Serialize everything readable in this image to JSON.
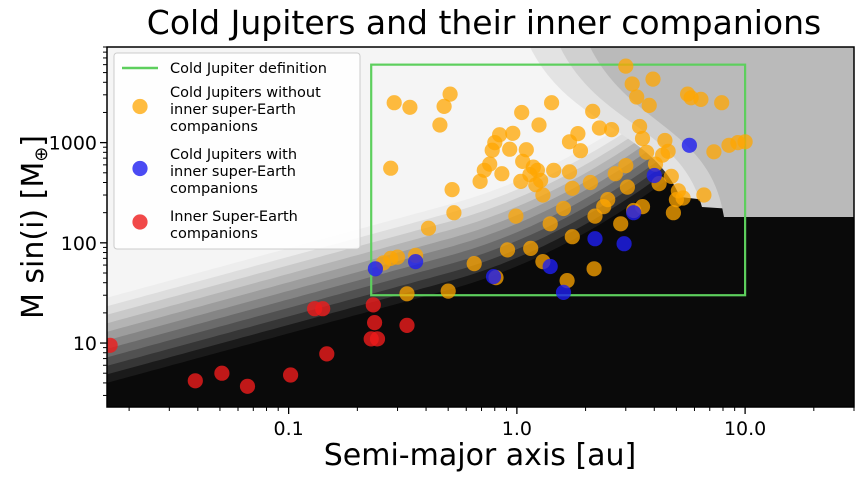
{
  "chart_data": {
    "type": "scatter",
    "title": "Cold Jupiters and their inner companions",
    "xlabel": "Semi-major axis [au]",
    "ylabel_main": "M sin(i) [M",
    "ylabel_sub": "⊕",
    "ylabel_close": "]",
    "xscale": "log",
    "yscale": "log",
    "xlim": [
      0.016,
      30
    ],
    "ylim": [
      2.3,
      9000
    ],
    "x_ticks": [
      {
        "value": 0.1,
        "label": "0.1"
      },
      {
        "value": 1.0,
        "label": "1.0"
      },
      {
        "value": 10.0,
        "label": "10.0"
      }
    ],
    "y_ticks": [
      {
        "value": 10,
        "label": "10"
      },
      {
        "value": 100,
        "label": "100"
      },
      {
        "value": 1000,
        "label": "1000"
      }
    ],
    "legend_placement": "top-left",
    "background": "grayscale filled contours (light at top-left, black at bottom-right)",
    "cold_jupiter_box": {
      "name": "Cold Jupiter definition",
      "color": "#5dcf5d",
      "x": [
        0.23,
        10.0
      ],
      "y": [
        30,
        6000
      ]
    },
    "series": [
      {
        "name": "Cold Jupiters without inner super-Earth companions",
        "legend_lines": [
          "Cold Jupiters without",
          "inner super-Earth",
          "companions"
        ],
        "color": "#ffa500",
        "points": [
          [
            0.28,
            70
          ],
          [
            0.26,
            63
          ],
          [
            0.3,
            72
          ],
          [
            0.33,
            31
          ],
          [
            0.36,
            75
          ],
          [
            0.29,
            2500
          ],
          [
            0.34,
            2250
          ],
          [
            0.28,
            555
          ],
          [
            0.41,
            140
          ],
          [
            0.48,
            2300
          ],
          [
            0.51,
            3050
          ],
          [
            0.46,
            1500
          ],
          [
            0.52,
            340
          ],
          [
            0.53,
            200
          ],
          [
            0.5,
            33
          ],
          [
            0.65,
            62
          ],
          [
            0.69,
            410
          ],
          [
            0.72,
            530
          ],
          [
            0.76,
            610
          ],
          [
            0.78,
            840
          ],
          [
            0.8,
            1000
          ],
          [
            0.84,
            1200
          ],
          [
            0.81,
            45
          ],
          [
            0.86,
            490
          ],
          [
            0.91,
            85
          ],
          [
            0.93,
            860
          ],
          [
            0.96,
            1240
          ],
          [
            0.99,
            185
          ],
          [
            1.04,
            410
          ],
          [
            1.06,
            650
          ],
          [
            1.1,
            850
          ],
          [
            1.14,
            480
          ],
          [
            1.18,
            570
          ],
          [
            1.21,
            380
          ],
          [
            1.23,
            530
          ],
          [
            1.27,
            420
          ],
          [
            1.05,
            2000
          ],
          [
            1.25,
            1500
          ],
          [
            1.3,
            300
          ],
          [
            1.15,
            88
          ],
          [
            1.3,
            65
          ],
          [
            1.4,
            155
          ],
          [
            1.45,
            530
          ],
          [
            1.42,
            2500
          ],
          [
            1.6,
            220
          ],
          [
            1.7,
            1020
          ],
          [
            1.75,
            350
          ],
          [
            1.7,
            510
          ],
          [
            1.85,
            1230
          ],
          [
            1.9,
            830
          ],
          [
            1.66,
            42
          ],
          [
            1.75,
            115
          ],
          [
            2.1,
            400
          ],
          [
            2.15,
            2050
          ],
          [
            2.3,
            1400
          ],
          [
            2.2,
            185
          ],
          [
            2.4,
            230
          ],
          [
            2.5,
            270
          ],
          [
            2.6,
            1350
          ],
          [
            2.7,
            490
          ],
          [
            2.85,
            155
          ],
          [
            3.0,
            590
          ],
          [
            3.05,
            360
          ],
          [
            2.18,
            55
          ],
          [
            3.0,
            5800
          ],
          [
            3.2,
            3850
          ],
          [
            3.35,
            2850
          ],
          [
            3.45,
            1450
          ],
          [
            3.55,
            1100
          ],
          [
            3.7,
            800
          ],
          [
            3.8,
            2350
          ],
          [
            3.95,
            4300
          ],
          [
            4.05,
            610
          ],
          [
            4.2,
            390
          ],
          [
            4.35,
            750
          ],
          [
            4.45,
            1050
          ],
          [
            4.6,
            820
          ],
          [
            4.75,
            460
          ],
          [
            4.85,
            200
          ],
          [
            5.0,
            270
          ],
          [
            5.1,
            330
          ],
          [
            5.35,
            280
          ],
          [
            5.6,
            3050
          ],
          [
            5.8,
            2800
          ],
          [
            6.4,
            2700
          ],
          [
            6.6,
            300
          ],
          [
            7.3,
            810
          ],
          [
            7.9,
            2500
          ],
          [
            8.5,
            940
          ],
          [
            9.3,
            1000
          ],
          [
            10.0,
            1020
          ],
          [
            3.25,
            210
          ],
          [
            3.55,
            230
          ]
        ]
      },
      {
        "name": "Cold Jupiters with inner super-Earth companions",
        "legend_lines": [
          "Cold Jupiters with",
          "inner super-Earth",
          "companions"
        ],
        "color": "#1e1ef0",
        "points": [
          [
            0.24,
            55
          ],
          [
            0.36,
            65
          ],
          [
            0.79,
            46
          ],
          [
            1.4,
            58
          ],
          [
            1.6,
            32
          ],
          [
            2.2,
            110
          ],
          [
            2.95,
            98
          ],
          [
            3.25,
            200
          ],
          [
            4.0,
            470
          ],
          [
            5.7,
            940
          ]
        ]
      },
      {
        "name": "Inner Super-Earth companions",
        "legend_lines": [
          "Inner Super-Earth",
          "companions"
        ],
        "color": "#ee1c1c",
        "points": [
          [
            0.0165,
            9.5
          ],
          [
            0.039,
            4.2
          ],
          [
            0.051,
            5.0
          ],
          [
            0.066,
            3.7
          ],
          [
            0.102,
            4.8
          ],
          [
            0.13,
            22
          ],
          [
            0.141,
            22
          ],
          [
            0.147,
            7.8
          ],
          [
            0.23,
            11
          ],
          [
            0.235,
            24
          ],
          [
            0.238,
            16
          ],
          [
            0.245,
            11
          ],
          [
            0.33,
            15
          ]
        ]
      }
    ]
  }
}
